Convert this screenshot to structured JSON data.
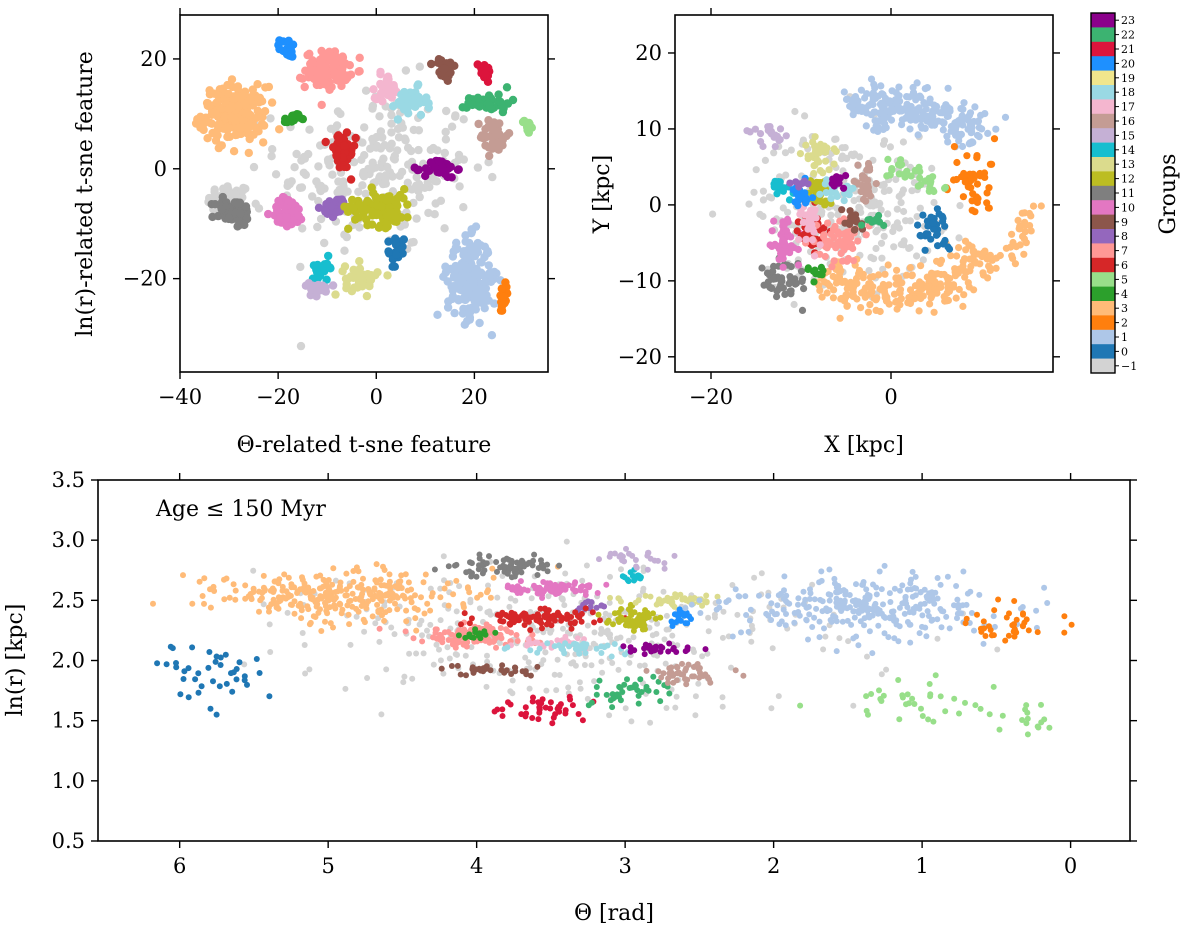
{
  "chart_data": [
    {
      "type": "scatter",
      "title": "",
      "xlabel": "Θ-related t-sne feature",
      "ylabel": "ln(r)-related t-sne feature",
      "xlim": [
        -40,
        35
      ],
      "ylim": [
        -37,
        28
      ],
      "xticks": [
        -40,
        -20,
        0,
        20
      ],
      "xtick_labels": [
        "−40",
        "−20",
        "0",
        "20"
      ],
      "yticks": [
        -20,
        0,
        20
      ],
      "ytick_labels": [
        "−20",
        "0",
        "20"
      ],
      "clusters": [
        {
          "group": 3,
          "center": [
            -29,
            10
          ],
          "spread": [
            6,
            4.5
          ],
          "n": 220
        },
        {
          "group": 7,
          "center": [
            -10,
            18
          ],
          "spread": [
            4,
            3
          ],
          "n": 120
        },
        {
          "group": 20,
          "center": [
            -18,
            22
          ],
          "spread": [
            1.5,
            1.5
          ],
          "n": 18
        },
        {
          "group": 4,
          "center": [
            -17,
            9
          ],
          "spread": [
            1.5,
            1
          ],
          "n": 15
        },
        {
          "group": 6,
          "center": [
            -7,
            3
          ],
          "spread": [
            2.5,
            3
          ],
          "n": 70
        },
        {
          "group": 17,
          "center": [
            2,
            15
          ],
          "spread": [
            2,
            2
          ],
          "n": 30
        },
        {
          "group": 18,
          "center": [
            7,
            12
          ],
          "spread": [
            3,
            2.5
          ],
          "n": 40
        },
        {
          "group": 9,
          "center": [
            14,
            18
          ],
          "spread": [
            2,
            2
          ],
          "n": 25
        },
        {
          "group": 21,
          "center": [
            22,
            18
          ],
          "spread": [
            1.5,
            1.5
          ],
          "n": 18
        },
        {
          "group": 22,
          "center": [
            23,
            12
          ],
          "spread": [
            4,
            1.5
          ],
          "n": 40
        },
        {
          "group": 16,
          "center": [
            24,
            6
          ],
          "spread": [
            2.5,
            3
          ],
          "n": 40
        },
        {
          "group": 5,
          "center": [
            31,
            8
          ],
          "spread": [
            1.2,
            1.5
          ],
          "n": 15
        },
        {
          "group": 23,
          "center": [
            13,
            0
          ],
          "spread": [
            3,
            1.5
          ],
          "n": 35
        },
        {
          "group": -1,
          "center": [
            -30,
            -6
          ],
          "spread": [
            4,
            3
          ],
          "n": 60
        },
        {
          "group": 11,
          "center": [
            -29,
            -8
          ],
          "spread": [
            3.5,
            2.5
          ],
          "n": 55
        },
        {
          "group": 10,
          "center": [
            -18,
            -8
          ],
          "spread": [
            3,
            2.5
          ],
          "n": 55
        },
        {
          "group": 8,
          "center": [
            -8,
            -7
          ],
          "spread": [
            2.5,
            1.5
          ],
          "n": 25
        },
        {
          "group": 12,
          "center": [
            1,
            -7
          ],
          "spread": [
            6,
            3
          ],
          "n": 100
        },
        {
          "group": 0,
          "center": [
            4,
            -15
          ],
          "spread": [
            1.5,
            2.5
          ],
          "n": 20
        },
        {
          "group": 13,
          "center": [
            -3,
            -20
          ],
          "spread": [
            3,
            2.5
          ],
          "n": 45
        },
        {
          "group": 14,
          "center": [
            -11,
            -18
          ],
          "spread": [
            2,
            1.5
          ],
          "n": 20
        },
        {
          "group": 15,
          "center": [
            -12,
            -22
          ],
          "spread": [
            3,
            1
          ],
          "n": 20
        },
        {
          "group": 1,
          "center": [
            19,
            -20
          ],
          "spread": [
            4,
            6.5
          ],
          "n": 220
        },
        {
          "group": 2,
          "center": [
            26,
            -24
          ],
          "spread": [
            1,
            2.5
          ],
          "n": 20
        },
        {
          "group": -1,
          "center": [
            0,
            0
          ],
          "spread": [
            18,
            14
          ],
          "n": 240
        }
      ]
    },
    {
      "type": "scatter",
      "title": "",
      "xlabel": "X [kpc]",
      "ylabel": "Y [kpc]",
      "xlim": [
        -24,
        18
      ],
      "ylim": [
        -22,
        25
      ],
      "xticks": [
        -20,
        0
      ],
      "xtick_labels": [
        "−20",
        "0"
      ],
      "yticks": [
        -20,
        -10,
        0,
        10,
        20
      ],
      "ytick_labels": [
        "−20",
        "−10",
        "0",
        "10",
        "20"
      ],
      "clusters": [
        {
          "group": 1,
          "arc": {
            "r": 13,
            "a0": 40,
            "a1": 110,
            "dr": 3
          },
          "n": 230
        },
        {
          "group": 3,
          "arc": {
            "r": 12,
            "a0": 230,
            "a1": 330,
            "dr": 3
          },
          "n": 250
        },
        {
          "group": 3,
          "arc": {
            "r": 15,
            "a0": 330,
            "a1": 360,
            "dr": 2
          },
          "n": 30
        },
        {
          "group": 2,
          "center": [
            9,
            3
          ],
          "spread": [
            2.5,
            4
          ],
          "n": 45
        },
        {
          "group": 0,
          "center": [
            5,
            -3
          ],
          "spread": [
            2,
            3
          ],
          "n": 35
        },
        {
          "group": 5,
          "arc": {
            "r": 5,
            "a0": 20,
            "a1": 110,
            "dr": 1
          },
          "n": 35
        },
        {
          "group": 11,
          "center": [
            -12,
            -10
          ],
          "spread": [
            2,
            2.5
          ],
          "n": 50
        },
        {
          "group": 10,
          "center": [
            -12,
            -5
          ],
          "spread": [
            1.5,
            3
          ],
          "n": 45
        },
        {
          "group": 6,
          "center": [
            -9,
            -3
          ],
          "spread": [
            1.3,
            2.5
          ],
          "n": 45
        },
        {
          "group": 7,
          "center": [
            -6,
            -5
          ],
          "spread": [
            2.5,
            2.5
          ],
          "n": 60
        },
        {
          "group": 9,
          "center": [
            -4,
            -2
          ],
          "spread": [
            1,
            2
          ],
          "n": 20
        },
        {
          "group": 12,
          "center": [
            -8,
            2
          ],
          "spread": [
            1.5,
            2
          ],
          "n": 40
        },
        {
          "group": 13,
          "center": [
            -8,
            7
          ],
          "spread": [
            1.5,
            2.5
          ],
          "n": 35
        },
        {
          "group": 14,
          "center": [
            -12,
            2
          ],
          "spread": [
            1,
            1
          ],
          "n": 15
        },
        {
          "group": 15,
          "center": [
            -14,
            9
          ],
          "spread": [
            2,
            1.5
          ],
          "n": 20
        },
        {
          "group": 16,
          "center": [
            -3,
            3
          ],
          "spread": [
            1.5,
            2.5
          ],
          "n": 30
        },
        {
          "group": 17,
          "center": [
            -9,
            -2
          ],
          "spread": [
            1,
            3
          ],
          "n": 25
        },
        {
          "group": 18,
          "center": [
            -6,
            2
          ],
          "spread": [
            1.5,
            2
          ],
          "n": 25
        },
        {
          "group": 20,
          "center": [
            -10,
            1
          ],
          "spread": [
            1,
            2
          ],
          "n": 18
        },
        {
          "group": 23,
          "center": [
            -6,
            3
          ],
          "spread": [
            1,
            1
          ],
          "n": 15
        },
        {
          "group": 22,
          "center": [
            -2,
            -2
          ],
          "spread": [
            1,
            1
          ],
          "n": 10
        },
        {
          "group": 4,
          "center": [
            -8,
            -9
          ],
          "spread": [
            1,
            0.8
          ],
          "n": 10
        },
        {
          "group": 8,
          "center": [
            -10,
            3
          ],
          "spread": [
            0.8,
            0.8
          ],
          "n": 8
        },
        {
          "group": -1,
          "center": [
            -5,
            0
          ],
          "spread": [
            9,
            9
          ],
          "n": 260
        }
      ]
    },
    {
      "type": "scatter",
      "title": "",
      "annotation": "Age ≤ 150 Myr",
      "xlabel": "Θ [rad]",
      "ylabel": "ln(r) [kpc]",
      "xlim": [
        6.55,
        -0.4
      ],
      "ylim": [
        0.5,
        3.5
      ],
      "xticks": [
        6,
        5,
        4,
        3,
        2,
        1,
        0
      ],
      "xtick_labels": [
        "6",
        "5",
        "4",
        "3",
        "2",
        "1",
        "0"
      ],
      "yticks": [
        0.5,
        1.0,
        1.5,
        2.0,
        2.5,
        3.0,
        3.5
      ],
      "ytick_labels": [
        "0.5",
        "1.0",
        "1.5",
        "2.0",
        "2.5",
        "3.0",
        "3.5"
      ],
      "clusters": [
        {
          "group": 0,
          "center": [
            5.8,
            1.85
          ],
          "spread": [
            0.35,
            0.25
          ],
          "n": 40
        },
        {
          "group": 3,
          "center": [
            4.9,
            2.55
          ],
          "spread": [
            0.8,
            0.18
          ],
          "n": 300
        },
        {
          "group": 7,
          "center": [
            4.0,
            2.2
          ],
          "spread": [
            0.35,
            0.08
          ],
          "n": 120
        },
        {
          "group": 4,
          "center": [
            4.0,
            2.22
          ],
          "spread": [
            0.1,
            0.05
          ],
          "n": 15
        },
        {
          "group": 11,
          "center": [
            3.8,
            2.78
          ],
          "spread": [
            0.3,
            0.08
          ],
          "n": 70
        },
        {
          "group": 10,
          "center": [
            3.5,
            2.6
          ],
          "spread": [
            0.3,
            0.05
          ],
          "n": 70
        },
        {
          "group": 8,
          "center": [
            3.25,
            2.45
          ],
          "spread": [
            0.08,
            0.04
          ],
          "n": 15
        },
        {
          "group": 6,
          "center": [
            3.6,
            2.35
          ],
          "spread": [
            0.35,
            0.06
          ],
          "n": 90
        },
        {
          "group": 9,
          "center": [
            3.9,
            1.92
          ],
          "spread": [
            0.25,
            0.05
          ],
          "n": 35
        },
        {
          "group": 21,
          "center": [
            3.55,
            1.6
          ],
          "spread": [
            0.25,
            0.1
          ],
          "n": 40
        },
        {
          "group": 17,
          "center": [
            3.5,
            2.15
          ],
          "spread": [
            0.25,
            0.05
          ],
          "n": 30
        },
        {
          "group": 18,
          "center": [
            3.3,
            2.1
          ],
          "spread": [
            0.35,
            0.05
          ],
          "n": 40
        },
        {
          "group": 22,
          "center": [
            2.95,
            1.75
          ],
          "spread": [
            0.25,
            0.1
          ],
          "n": 40
        },
        {
          "group": 16,
          "center": [
            2.6,
            1.9
          ],
          "spread": [
            0.25,
            0.08
          ],
          "n": 45
        },
        {
          "group": 12,
          "center": [
            2.95,
            2.35
          ],
          "spread": [
            0.15,
            0.1
          ],
          "n": 60
        },
        {
          "group": 13,
          "center": [
            2.7,
            2.5
          ],
          "spread": [
            0.3,
            0.05
          ],
          "n": 50
        },
        {
          "group": 14,
          "center": [
            2.95,
            2.68
          ],
          "spread": [
            0.08,
            0.05
          ],
          "n": 15
        },
        {
          "group": 15,
          "center": [
            2.9,
            2.85
          ],
          "spread": [
            0.25,
            0.08
          ],
          "n": 25
        },
        {
          "group": 20,
          "center": [
            2.6,
            2.35
          ],
          "spread": [
            0.1,
            0.06
          ],
          "n": 18
        },
        {
          "group": 23,
          "center": [
            2.8,
            2.1
          ],
          "spread": [
            0.2,
            0.04
          ],
          "n": 30
        },
        {
          "group": 1,
          "center": [
            1.4,
            2.45
          ],
          "spread": [
            0.8,
            0.22
          ],
          "n": 300
        },
        {
          "group": 2,
          "center": [
            0.4,
            2.3
          ],
          "spread": [
            0.3,
            0.15
          ],
          "n": 40
        },
        {
          "group": 5,
          "center": [
            1.1,
            1.65
          ],
          "spread": [
            0.55,
            0.15
          ],
          "n": 35
        },
        {
          "group": 5,
          "center": [
            0.3,
            1.55
          ],
          "spread": [
            0.2,
            0.15
          ],
          "n": 15
        },
        {
          "group": -1,
          "center": [
            3.4,
            2.2
          ],
          "spread": [
            1.6,
            0.5
          ],
          "n": 360
        }
      ]
    }
  ],
  "colorbar": {
    "label": "Groups",
    "groups": [
      23,
      22,
      21,
      20,
      19,
      18,
      17,
      16,
      15,
      14,
      13,
      12,
      11,
      10,
      9,
      8,
      7,
      6,
      5,
      4,
      3,
      2,
      1,
      0,
      -1
    ],
    "tick_labels": [
      "23",
      "22",
      "21",
      "20",
      "19",
      "18",
      "17",
      "16",
      "15",
      "14",
      "13",
      "12",
      "11",
      "10",
      "9",
      "8",
      "7",
      "6",
      "5",
      "4",
      "3",
      "2",
      "1",
      "0",
      "−1"
    ],
    "colors": {
      "23": "#8b008b",
      "22": "#3cb371",
      "21": "#dc143c",
      "20": "#1e90ff",
      "19": "#f0e68c",
      "18": "#9ad9e4",
      "17": "#f4b6cf",
      "16": "#c49c94",
      "15": "#c5b0d5",
      "14": "#17becf",
      "13": "#dbdb8d",
      "12": "#bcbd22",
      "11": "#7f7f7f",
      "10": "#e377c2",
      "9": "#8c564b",
      "8": "#9467bd",
      "7": "#ff9896",
      "6": "#d62728",
      "5": "#98df8a",
      "4": "#2ca02c",
      "3": "#ffbb78",
      "2": "#ff7f0e",
      "1": "#aec7e8",
      "0": "#1f77b4",
      "-1": "#d3d3d3"
    }
  }
}
